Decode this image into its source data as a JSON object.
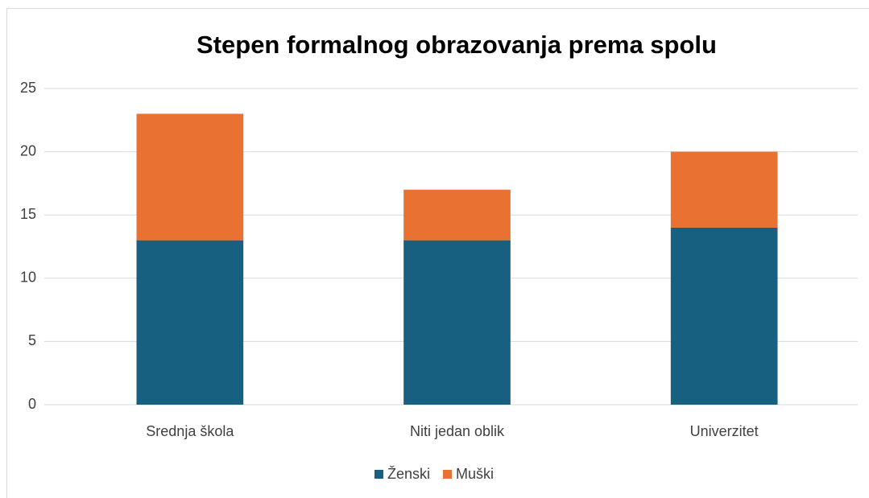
{
  "chart_data": {
    "type": "stacked_bar",
    "title": "Stepen formalnog obrazovanja prema spolu",
    "categories": [
      "Srednja škola",
      "Niti jedan oblik",
      "Univerzitet"
    ],
    "series": [
      {
        "name": "Ženski",
        "color": "#17607f",
        "values": [
          13,
          13,
          14
        ]
      },
      {
        "name": "Muški",
        "color": "#e97132",
        "values": [
          10,
          4,
          6
        ]
      }
    ],
    "ylim": [
      0,
      25
    ],
    "yticks": [
      0,
      5,
      10,
      15,
      20,
      25
    ],
    "grid": true,
    "legend": "bottom"
  }
}
